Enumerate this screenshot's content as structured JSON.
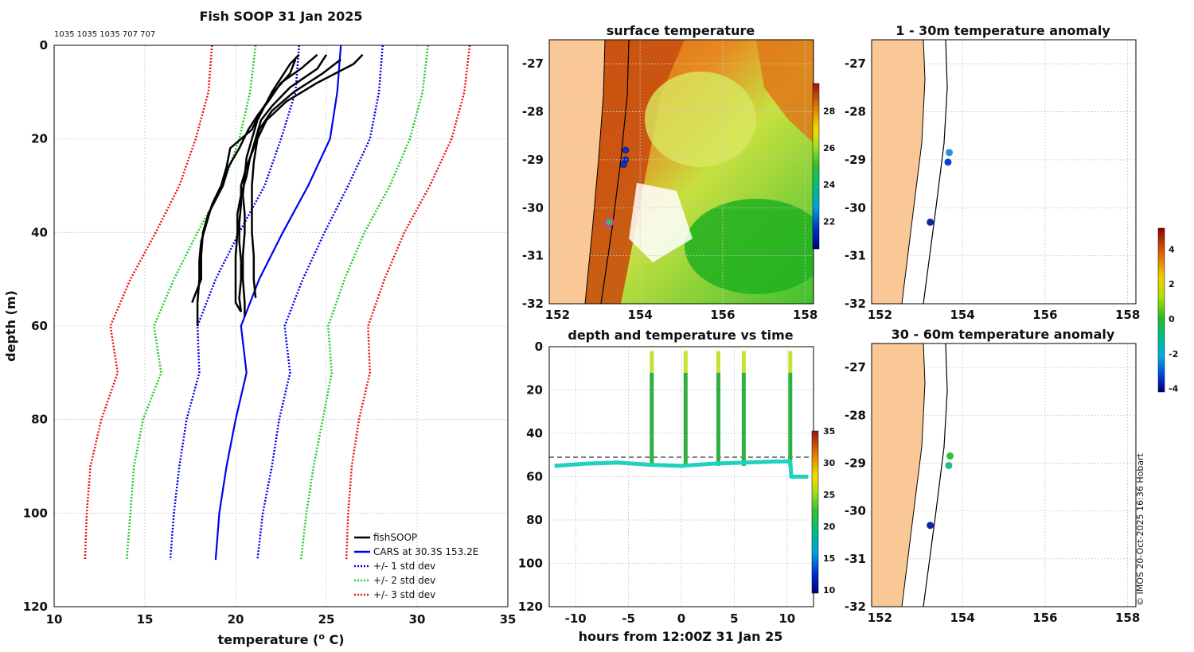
{
  "credit": "© IMOS 20-Oct-2025 16:36 Hobart",
  "colors": {
    "fish": "#000000",
    "cars": "#0000ee",
    "sd1": "#0000ee",
    "sd2": "#22cc22",
    "sd3": "#ee1111",
    "land": "#f9c896",
    "ship": "#cc33cc"
  },
  "chart_data": [
    {
      "id": "profile",
      "type": "line",
      "title": "Fish SOOP 31 Jan 2025",
      "subtitle": "1035 1035 1035 707 707",
      "xlabel": "temperature (o C)",
      "xlabel_main": "temperature (",
      "xlabel_sup": "o",
      "xlabel_end": " C)",
      "ylabel": "depth (m)",
      "xlim": [
        10,
        35
      ],
      "ylim": [
        0,
        120
      ],
      "xticks": [
        "10",
        "15",
        "20",
        "25",
        "30",
        "35"
      ],
      "yticks": [
        "0",
        "20",
        "40",
        "60",
        "80",
        "100",
        "120"
      ],
      "legend": [
        "fishSOOP",
        "CARS at 30.3S 153.2E",
        "+/- 1 std dev",
        "+/- 2 std dev",
        "+/- 3 std dev"
      ],
      "cars_depth": [
        0,
        10,
        20,
        30,
        40,
        50,
        60,
        70,
        80,
        90,
        100,
        110
      ],
      "cars": [
        25.8,
        25.6,
        25.2,
        24.0,
        22.6,
        21.3,
        20.3,
        20.6,
        20.0,
        19.5,
        19.1,
        18.9
      ],
      "sd1_depth": [
        0,
        10,
        20,
        30,
        40,
        50,
        60,
        70,
        80,
        90,
        100,
        110
      ],
      "sd1_lo": [
        23.5,
        23.3,
        22.5,
        21.6,
        20.2,
        18.9,
        17.9,
        18.0,
        17.3,
        16.9,
        16.6,
        16.4
      ],
      "sd1_hi": [
        28.1,
        27.9,
        27.4,
        26.2,
        24.9,
        23.7,
        22.7,
        23.0,
        22.4,
        22.0,
        21.5,
        21.2
      ],
      "sd2_lo": [
        21.1,
        20.8,
        20.2,
        19.3,
        17.9,
        16.6,
        15.5,
        15.9,
        14.9,
        14.4,
        14.2,
        14.0
      ],
      "sd2_hi": [
        30.6,
        30.3,
        29.6,
        28.5,
        27.1,
        26.0,
        25.1,
        25.3,
        24.8,
        24.3,
        23.9,
        23.6
      ],
      "sd3_lo": [
        18.7,
        18.5,
        17.8,
        16.9,
        15.6,
        14.2,
        13.1,
        13.5,
        12.6,
        12.0,
        11.8,
        11.7
      ],
      "sd3_hi": [
        32.9,
        32.6,
        31.9,
        30.7,
        29.3,
        28.2,
        27.3,
        27.4,
        26.8,
        26.4,
        26.2,
        26.1
      ],
      "fish_profiles": [
        {
          "depth": [
            2,
            5,
            8,
            12,
            15,
            18,
            22,
            26,
            30,
            33,
            36,
            40,
            45,
            50,
            55
          ],
          "temp": [
            24.5,
            23.6,
            22.5,
            21.8,
            21.2,
            20.7,
            20.2,
            19.6,
            19.3,
            18.9,
            18.5,
            18.2,
            18.1,
            18.1,
            17.6
          ]
        },
        {
          "depth": [
            3,
            6,
            10,
            14,
            18,
            22,
            26,
            30,
            34,
            38,
            42,
            46,
            50,
            55,
            60
          ],
          "temp": [
            23.3,
            23.0,
            22.1,
            21.4,
            20.9,
            19.7,
            19.5,
            19.2,
            18.7,
            18.4,
            18.1,
            18.0,
            18.0,
            17.9,
            17.9
          ]
        },
        {
          "depth": [
            2,
            4,
            7,
            10,
            13,
            16,
            20,
            24,
            28,
            32,
            36,
            40,
            45,
            50,
            55,
            58
          ],
          "temp": [
            23.5,
            23.0,
            22.5,
            22.0,
            21.6,
            21.2,
            20.9,
            20.6,
            20.5,
            20.4,
            20.5,
            20.5,
            20.4,
            20.4,
            20.5,
            20.5
          ]
        },
        {
          "depth": [
            2,
            5,
            9,
            13,
            16,
            20,
            24,
            28,
            32,
            36,
            40,
            45,
            50,
            55,
            57
          ],
          "temp": [
            25.0,
            24.5,
            23.0,
            22.0,
            21.4,
            21.1,
            20.8,
            20.6,
            20.3,
            20.1,
            20.1,
            20.0,
            20.0,
            20.0,
            20.3
          ]
        },
        {
          "depth": [
            2,
            4,
            8,
            12,
            16,
            20,
            25,
            30,
            35,
            40,
            45,
            50,
            54
          ],
          "temp": [
            27.0,
            26.5,
            24.5,
            22.8,
            21.7,
            21.2,
            21.0,
            20.9,
            20.9,
            20.9,
            21.0,
            21.0,
            21.1
          ]
        },
        {
          "depth": [
            3,
            6,
            10,
            14,
            18,
            22,
            26,
            30,
            34,
            38,
            42,
            46,
            50,
            54,
            57
          ],
          "temp": [
            25.8,
            24.8,
            23.2,
            22.0,
            21.3,
            21.0,
            20.6,
            20.3,
            20.3,
            20.2,
            20.2,
            20.3,
            20.3,
            20.2,
            20.3
          ]
        }
      ]
    },
    {
      "id": "sst",
      "type": "heatmap",
      "title": "surface temperature",
      "xlim": [
        151.8,
        158.2
      ],
      "ylim": [
        -32,
        -26.5
      ],
      "xticks": [
        "152",
        "154",
        "156",
        "158"
      ],
      "yticks": [
        "-27",
        "-28",
        "-29",
        "-30",
        "-31",
        "-32"
      ],
      "colorbar": {
        "range": [
          20.5,
          29.5
        ],
        "ticks": [
          "22",
          "24",
          "26",
          "28"
        ]
      },
      "stations": [
        {
          "lon": 153.65,
          "lat": -28.8
        },
        {
          "lon": 153.65,
          "lat": -29.0
        },
        {
          "lon": 153.6,
          "lat": -29.1
        }
      ],
      "ship": {
        "lon": 153.25,
        "lat": -30.3
      }
    },
    {
      "id": "depth_time",
      "type": "scatter",
      "title": "depth and temperature vs time",
      "xlabel": "hours from 12:00Z 31 Jan 25",
      "xlim": [
        -12.5,
        12.5
      ],
      "ylim": [
        0,
        120
      ],
      "xticks": [
        "-10",
        "-5",
        "0",
        "5",
        "10"
      ],
      "yticks": [
        "0",
        "20",
        "40",
        "60",
        "80",
        "100",
        "120"
      ],
      "dashed_depth": 51,
      "colorbar": {
        "range": [
          9.5,
          35
        ],
        "ticks": [
          "10",
          "15",
          "20",
          "25",
          "30",
          "35"
        ]
      },
      "casts_hours": [
        -2.8,
        0.4,
        3.5,
        5.9,
        10.3
      ],
      "bottom_hours": [
        -12,
        -9,
        -6,
        -3,
        0,
        3,
        6,
        9,
        10.3,
        10.4,
        12
      ],
      "bottom_depth": [
        55,
        54,
        53.5,
        54.5,
        55,
        54,
        53.5,
        53,
        53,
        60,
        60
      ]
    },
    {
      "id": "anom1",
      "type": "scatter",
      "title": "1 - 30m temperature anomaly",
      "xlim": [
        151.8,
        158.2
      ],
      "ylim": [
        -32,
        -26.5
      ],
      "xticks": [
        "152",
        "154",
        "156",
        "158"
      ],
      "yticks": [
        "-27",
        "-28",
        "-29",
        "-30",
        "-31",
        "-32"
      ],
      "points": [
        {
          "lon": 153.68,
          "lat": -28.85,
          "anom": -1.8
        },
        {
          "lon": 153.65,
          "lat": -29.05,
          "anom": -3.2
        },
        {
          "lon": 153.22,
          "lat": -30.3,
          "anom": -3.6
        }
      ]
    },
    {
      "id": "anom2",
      "type": "scatter",
      "title": "30 - 60m temperature anomaly",
      "xlim": [
        151.8,
        158.2
      ],
      "ylim": [
        -32,
        -26.5
      ],
      "xticks": [
        "152",
        "154",
        "156",
        "158"
      ],
      "yticks": [
        "-27",
        "-28",
        "-29",
        "-30",
        "-31",
        "-32"
      ],
      "points": [
        {
          "lon": 153.7,
          "lat": -28.85,
          "anom": 0.5
        },
        {
          "lon": 153.67,
          "lat": -29.05,
          "anom": -1.0
        },
        {
          "lon": 153.22,
          "lat": -30.3,
          "anom": -3.6
        }
      ],
      "colorbar": {
        "range": [
          -4.2,
          5.2
        ],
        "ticks": [
          "4",
          "2",
          "0",
          "-2",
          "-4"
        ]
      }
    }
  ]
}
